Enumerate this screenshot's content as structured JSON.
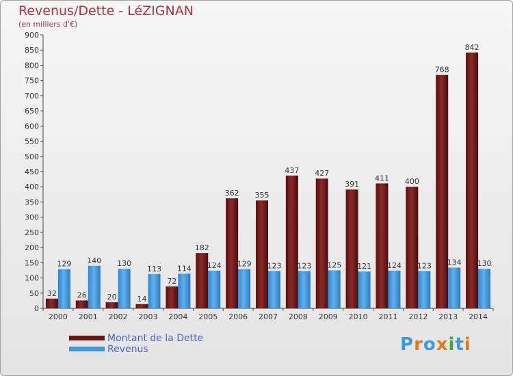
{
  "header": {
    "title": "Revenus/Dette - LéZIGNAN",
    "subtitle": "(en milliers d'€)"
  },
  "chart_data": {
    "type": "bar",
    "title": "Revenus/Dette - LéZIGNAN",
    "ylabel": "(en milliers d'€)",
    "xlabel": "",
    "ylim": [
      0,
      900
    ],
    "ytick_step": 50,
    "grid": false,
    "legend_position": "bottom-left",
    "categories": [
      "2000",
      "2001",
      "2002",
      "2003",
      "2004",
      "2005",
      "2006",
      "2007",
      "2008",
      "2009",
      "2010",
      "2011",
      "2012",
      "2013",
      "2014"
    ],
    "series": [
      {
        "name": "Montant de la Dette",
        "color": "#7a1e1e",
        "values": [
          32,
          26,
          20,
          14,
          72,
          182,
          362,
          355,
          437,
          427,
          391,
          411,
          400,
          768,
          842
        ]
      },
      {
        "name": "Revenus",
        "color": "#3f98de",
        "values": [
          129,
          140,
          130,
          113,
          114,
          124,
          129,
          123,
          123,
          125,
          121,
          124,
          123,
          134,
          130
        ]
      }
    ]
  },
  "legend": {
    "items": [
      {
        "label": "Montant de la Dette",
        "color": "#6b1414"
      },
      {
        "label": "Revenus",
        "color": "#3f98de"
      }
    ]
  },
  "logo": {
    "letters": [
      "P",
      "r",
      "o",
      "x",
      "i",
      "t",
      "i"
    ],
    "colors": [
      "#3f98de",
      "#e07a1a",
      "#3f98de",
      "#e07a1a",
      "#3fa83f",
      "#3f98de",
      "#e07a1a"
    ]
  }
}
